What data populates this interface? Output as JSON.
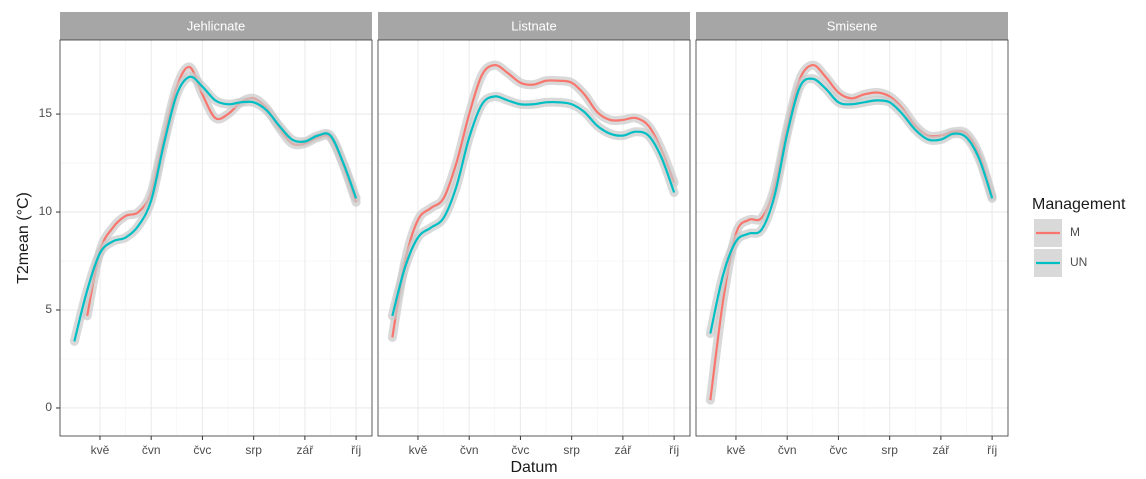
{
  "chart_data": [
    {
      "type": "line",
      "title": "Jehlicnate",
      "y_label": "T2mean (°C)",
      "x": [
        4.5,
        4.75,
        5.0,
        5.25,
        5.5,
        5.75,
        6.0,
        6.25,
        6.5,
        6.75,
        7.0,
        7.25,
        7.5,
        7.75,
        8.0,
        8.25,
        8.5,
        8.75,
        9.0,
        9.25,
        9.5,
        9.75,
        10.0
      ],
      "series": [
        {
          "name": "M",
          "color": "#f8766d",
          "values": [
            null,
            4.7,
            8.0,
            9.2,
            9.8,
            10.0,
            11.0,
            13.8,
            16.4,
            17.4,
            16.0,
            14.8,
            15.0,
            15.6,
            15.8,
            15.3,
            14.3,
            13.5,
            13.5,
            13.8,
            13.8,
            12.4,
            10.5
          ]
        },
        {
          "name": "UN",
          "color": "#00bfc4",
          "values": [
            3.4,
            6.0,
            7.9,
            8.5,
            8.7,
            9.3,
            10.6,
            13.5,
            16.0,
            16.9,
            16.4,
            15.7,
            15.5,
            15.6,
            15.6,
            15.2,
            14.4,
            13.7,
            13.6,
            13.9,
            13.9,
            12.5,
            10.7
          ]
        }
      ],
      "xlim": [
        4.22,
        10.31
      ],
      "ylim": [
        -1.43,
        18.78
      ],
      "xticks": [
        {
          "value": 5,
          "label": "kvě"
        },
        {
          "value": 6,
          "label": "čvn"
        },
        {
          "value": 7,
          "label": "čvc"
        },
        {
          "value": 8,
          "label": "srp"
        },
        {
          "value": 9,
          "label": "zář"
        },
        {
          "value": 10,
          "label": "říj"
        }
      ],
      "yticks": [
        0,
        5,
        10,
        15
      ],
      "grid": true
    },
    {
      "type": "line",
      "title": "Listnate",
      "x_label": "Datum",
      "x": [
        4.5,
        4.75,
        5.0,
        5.25,
        5.5,
        5.75,
        6.0,
        6.25,
        6.5,
        6.75,
        7.0,
        7.25,
        7.5,
        7.75,
        8.0,
        8.25,
        8.5,
        8.75,
        9.0,
        9.25,
        9.5,
        9.75,
        10.0
      ],
      "series": [
        {
          "name": "M",
          "color": "#f8766d",
          "values": [
            3.6,
            7.5,
            9.6,
            10.2,
            10.7,
            12.5,
            15.0,
            17.0,
            17.5,
            17.1,
            16.6,
            16.5,
            16.7,
            16.7,
            16.6,
            16.0,
            15.1,
            14.7,
            14.7,
            14.8,
            14.4,
            13.2,
            11.5
          ]
        },
        {
          "name": "UN",
          "color": "#00bfc4",
          "values": [
            4.7,
            7.2,
            8.7,
            9.2,
            9.7,
            11.3,
            13.8,
            15.5,
            15.9,
            15.7,
            15.5,
            15.5,
            15.6,
            15.6,
            15.5,
            15.1,
            14.4,
            14.0,
            13.9,
            14.1,
            13.9,
            12.8,
            11.0
          ]
        }
      ],
      "xlim": [
        4.22,
        10.31
      ],
      "ylim": [
        -1.43,
        18.78
      ],
      "xticks": [
        {
          "value": 5,
          "label": "kvě"
        },
        {
          "value": 6,
          "label": "čvn"
        },
        {
          "value": 7,
          "label": "čvc"
        },
        {
          "value": 8,
          "label": "srp"
        },
        {
          "value": 9,
          "label": "zář"
        },
        {
          "value": 10,
          "label": "říj"
        }
      ],
      "yticks": [
        0,
        5,
        10,
        15
      ],
      "grid": true
    },
    {
      "type": "line",
      "title": "Smisene",
      "legend_title": "Management",
      "legend": "right",
      "x": [
        4.5,
        4.75,
        5.0,
        5.25,
        5.5,
        5.75,
        6.0,
        6.25,
        6.5,
        6.75,
        7.0,
        7.25,
        7.5,
        7.75,
        8.0,
        8.25,
        8.5,
        8.75,
        9.0,
        9.25,
        9.5,
        9.75,
        10.0
      ],
      "series": [
        {
          "name": "M",
          "color": "#f8766d",
          "values": [
            0.4,
            5.5,
            8.9,
            9.6,
            9.7,
            11.2,
            14.3,
            16.8,
            17.5,
            16.9,
            16.1,
            15.8,
            16.0,
            16.1,
            15.9,
            15.3,
            14.4,
            13.9,
            13.9,
            14.1,
            14.0,
            12.9,
            10.8
          ]
        },
        {
          "name": "UN",
          "color": "#00bfc4",
          "values": [
            3.8,
            6.8,
            8.5,
            8.9,
            9.1,
            10.8,
            14.0,
            16.4,
            16.8,
            16.3,
            15.6,
            15.5,
            15.6,
            15.7,
            15.6,
            15.0,
            14.2,
            13.7,
            13.7,
            14.0,
            13.8,
            12.7,
            10.7
          ]
        }
      ],
      "xlim": [
        4.22,
        10.31
      ],
      "ylim": [
        -1.43,
        18.78
      ],
      "xticks": [
        {
          "value": 5,
          "label": "kvě"
        },
        {
          "value": 6,
          "label": "čvn"
        },
        {
          "value": 7,
          "label": "čvc"
        },
        {
          "value": 8,
          "label": "srp"
        },
        {
          "value": 9,
          "label": "zář"
        },
        {
          "value": 10,
          "label": "říj"
        }
      ],
      "yticks": [
        0,
        5,
        10,
        15
      ],
      "grid": true
    }
  ]
}
